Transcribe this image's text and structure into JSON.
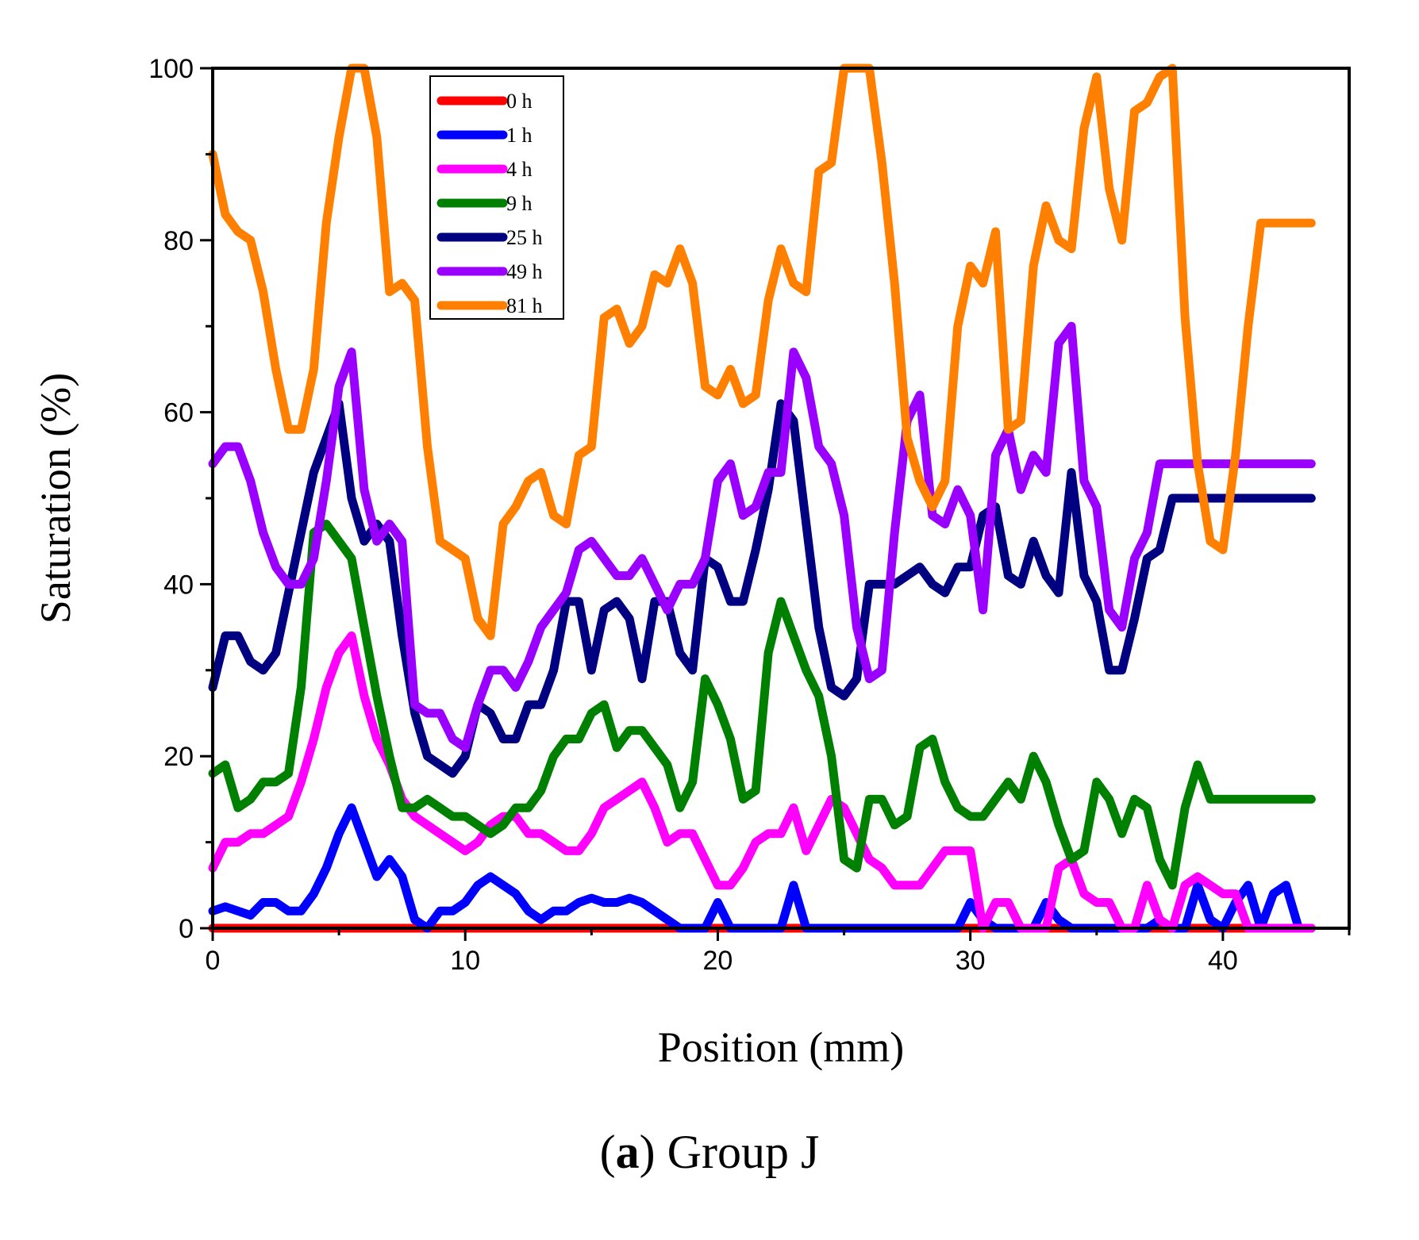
{
  "chart_data": {
    "type": "line",
    "title": "",
    "xlabel": "Position (mm)",
    "ylabel": "Saturation (%)",
    "xlim": [
      0,
      45
    ],
    "ylim": [
      0,
      100
    ],
    "xticks": [
      0,
      10,
      20,
      30,
      40
    ],
    "yticks": [
      0,
      20,
      40,
      60,
      80,
      100
    ],
    "grid": false,
    "legend_position": "top-left",
    "x": [
      0,
      0.5,
      1,
      1.5,
      2,
      2.5,
      3,
      3.5,
      4,
      4.5,
      5,
      5.5,
      6,
      6.5,
      7,
      7.5,
      8,
      8.5,
      9,
      9.5,
      10,
      10.5,
      11,
      11.5,
      12,
      12.5,
      13,
      13.5,
      14,
      14.5,
      15,
      15.5,
      16,
      16.5,
      17,
      17.5,
      18,
      18.5,
      19,
      19.5,
      20,
      20.5,
      21,
      21.5,
      22,
      22.5,
      23,
      23.5,
      24,
      24.5,
      25,
      25.5,
      26,
      26.5,
      27,
      27.5,
      28,
      28.5,
      29,
      29.5,
      30,
      30.5,
      31,
      31.5,
      32,
      32.5,
      33,
      33.5,
      34,
      34.5,
      35,
      35.5,
      36,
      36.5,
      37,
      37.5,
      38,
      38.5,
      39,
      39.5,
      40,
      40.5,
      41,
      41.5,
      42,
      42.5,
      43,
      43.5
    ],
    "series": [
      {
        "name": "0 h",
        "color": "#ff0000",
        "values": [
          0,
          0,
          0,
          0,
          0,
          0,
          0,
          0,
          0,
          0,
          0,
          0,
          0,
          0,
          0,
          0,
          0,
          0,
          0,
          0,
          0,
          0,
          0,
          0,
          0,
          0,
          0,
          0,
          0,
          0,
          0,
          0,
          0,
          0,
          0,
          0,
          0,
          0,
          0,
          0,
          0,
          0,
          0,
          0,
          0,
          0,
          0,
          0,
          0,
          0,
          0,
          0,
          0,
          0,
          0,
          0,
          0,
          0,
          0,
          0,
          0,
          0,
          0,
          0,
          0,
          0,
          0,
          0,
          0,
          0,
          0,
          0,
          0,
          0,
          0,
          0,
          0,
          0,
          0,
          0,
          0,
          0,
          0,
          0,
          0,
          0,
          0,
          0
        ]
      },
      {
        "name": "1 h",
        "color": "#0000ff",
        "values": [
          2,
          2.5,
          2,
          1.5,
          3,
          3,
          2,
          2,
          4,
          7,
          11,
          14,
          10,
          6,
          8,
          6,
          1,
          0,
          2,
          2,
          3,
          5,
          6,
          5,
          4,
          2,
          1,
          2,
          2,
          3,
          3.5,
          3,
          3,
          3.5,
          3,
          2,
          1,
          0,
          0,
          0,
          3,
          0,
          0,
          0,
          0,
          0,
          5,
          0,
          0,
          0,
          0,
          0,
          0,
          0,
          0,
          0,
          0,
          0,
          0,
          0,
          3,
          1,
          0,
          0,
          0,
          0,
          3,
          1,
          0,
          0,
          0,
          0,
          0,
          0,
          0,
          1,
          0,
          0,
          5,
          1,
          0,
          3,
          5,
          0,
          4,
          5,
          0,
          0
        ]
      },
      {
        "name": "4 h",
        "color": "#ff00ff",
        "values": [
          7,
          10,
          10,
          11,
          11,
          12,
          13,
          17,
          22,
          28,
          32,
          34,
          27,
          22,
          19,
          15,
          13,
          12,
          11,
          10,
          9,
          10,
          12,
          13,
          13,
          11,
          11,
          10,
          9,
          9,
          11,
          14,
          15,
          16,
          17,
          14,
          10,
          11,
          11,
          8,
          5,
          5,
          7,
          10,
          11,
          11,
          14,
          9,
          12,
          15,
          14,
          11,
          8,
          7,
          5,
          5,
          5,
          7,
          9,
          9,
          9,
          0,
          3,
          3,
          0,
          0,
          0,
          7,
          8,
          4,
          3,
          3,
          0,
          0,
          5,
          1,
          0,
          5,
          6,
          5,
          4,
          4,
          0,
          0,
          0,
          0,
          0,
          0
        ]
      },
      {
        "name": "9 h",
        "color": "#008000",
        "values": [
          18,
          19,
          14,
          15,
          17,
          17,
          18,
          28,
          46,
          47,
          45,
          43,
          35,
          27,
          20,
          14,
          14,
          15,
          14,
          13,
          13,
          12,
          11,
          12,
          14,
          14,
          16,
          20,
          22,
          22,
          25,
          26,
          21,
          23,
          23,
          21,
          19,
          14,
          17,
          29,
          26,
          22,
          15,
          16,
          32,
          38,
          34,
          30,
          27,
          20,
          8,
          7,
          15,
          15,
          12,
          13,
          21,
          22,
          17,
          14,
          13,
          13,
          15,
          17,
          15,
          20,
          17,
          12,
          8,
          9,
          17,
          15,
          11,
          15,
          14,
          8,
          5,
          14,
          19,
          15,
          15,
          15,
          15,
          15,
          15,
          15,
          15,
          15
        ]
      },
      {
        "name": "25 h",
        "color": "#000080",
        "values": [
          28,
          34,
          34,
          31,
          30,
          32,
          39,
          46,
          53,
          57,
          61,
          50,
          45,
          47,
          45,
          34,
          25,
          20,
          19,
          18,
          20,
          26,
          25,
          22,
          22,
          26,
          26,
          30,
          38,
          38,
          30,
          37,
          38,
          36,
          29,
          38,
          38,
          32,
          30,
          43,
          42,
          38,
          38,
          44,
          51,
          61,
          59,
          47,
          35,
          28,
          27,
          29,
          40,
          40,
          40,
          41,
          42,
          40,
          39,
          42,
          42,
          48,
          49,
          41,
          40,
          45,
          41,
          39,
          53,
          41,
          38,
          30,
          30,
          36,
          43,
          44,
          50,
          50,
          50,
          50,
          50,
          50,
          50,
          50,
          50,
          50,
          50,
          50
        ]
      },
      {
        "name": "49 h",
        "color": "#9900ff",
        "values": [
          54,
          56,
          56,
          52,
          46,
          42,
          40,
          40,
          43,
          52,
          63,
          67,
          51,
          45,
          47,
          45,
          26,
          25,
          25,
          22,
          21,
          26,
          30,
          30,
          28,
          31,
          35,
          37,
          39,
          44,
          45,
          43,
          41,
          41,
          43,
          40,
          37,
          40,
          40,
          43,
          52,
          54,
          48,
          49,
          53,
          53,
          67,
          64,
          56,
          54,
          48,
          35,
          29,
          30,
          46,
          59,
          62,
          48,
          47,
          51,
          48,
          37,
          55,
          58,
          51,
          55,
          53,
          68,
          70,
          52,
          49,
          37,
          35,
          43,
          46,
          54,
          54,
          54,
          54,
          54,
          54,
          54,
          54,
          54,
          54,
          54,
          54,
          54
        ]
      },
      {
        "name": "81 h",
        "color": "#ff8000",
        "values": [
          90,
          83,
          81,
          80,
          74,
          65,
          58,
          58,
          65,
          82,
          92,
          100,
          100,
          92,
          74,
          75,
          73,
          56,
          45,
          44,
          43,
          36,
          34,
          47,
          49,
          52,
          53,
          48,
          47,
          55,
          56,
          71,
          72,
          68,
          70,
          76,
          75,
          79,
          75,
          63,
          62,
          65,
          61,
          62,
          73,
          79,
          75,
          74,
          88,
          89,
          100,
          100,
          100,
          89,
          75,
          57,
          52,
          49,
          52,
          70,
          77,
          75,
          81,
          58,
          59,
          77,
          84,
          80,
          79,
          93,
          99,
          86,
          80,
          95,
          96,
          99,
          100,
          71,
          54,
          45,
          44,
          55,
          70,
          82,
          82,
          82,
          82,
          82
        ]
      }
    ]
  },
  "caption": {
    "letter": "a",
    "text": "Group J"
  }
}
